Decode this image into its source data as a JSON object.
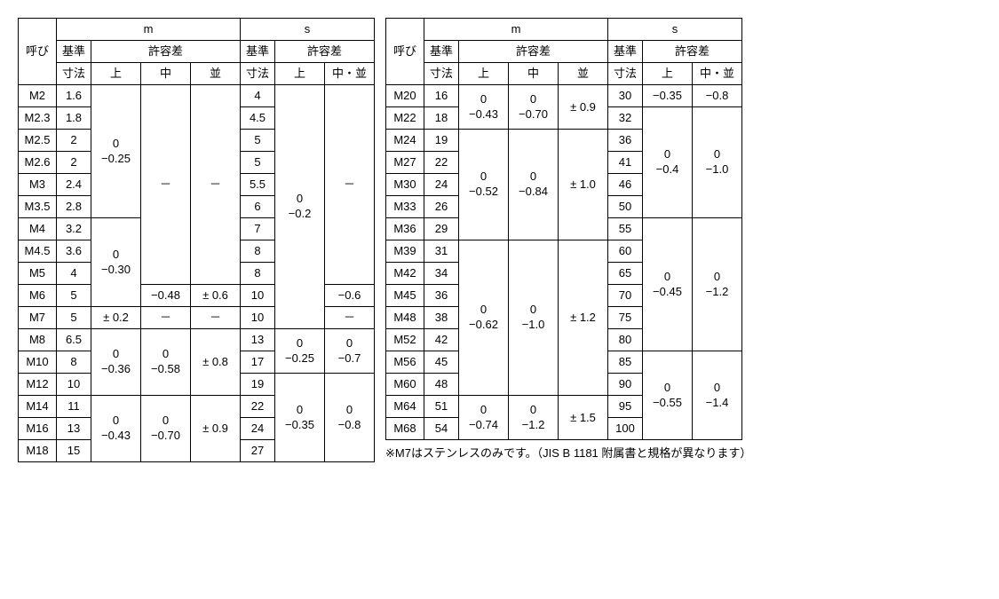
{
  "labels": {
    "yobi": "呼び",
    "m": "m",
    "s": "s",
    "kijun": "基準",
    "sunpo": "寸法",
    "kyoyosa": "許容差",
    "ue": "上",
    "naka": "中",
    "nami": "並",
    "naka_nami": "中・並",
    "dash": "－"
  },
  "note": "※M7はステンレスのみです。（JIS B 1181 附属書と規格が異なります）",
  "t1": {
    "rows": [
      {
        "y": "M2",
        "mk": "1.6",
        "sk": "4"
      },
      {
        "y": "M2.3",
        "mk": "1.8",
        "sk": "4.5"
      },
      {
        "y": "M2.5",
        "mk": "2",
        "sk": "5"
      },
      {
        "y": "M2.6",
        "mk": "2",
        "sk": "5"
      },
      {
        "y": "M3",
        "mk": "2.4",
        "sk": "5.5"
      },
      {
        "y": "M3.5",
        "mk": "2.8",
        "sk": "6"
      },
      {
        "y": "M4",
        "mk": "3.2",
        "sk": "7"
      },
      {
        "y": "M4.5",
        "mk": "3.6",
        "sk": "8"
      },
      {
        "y": "M5",
        "mk": "4",
        "sk": "8"
      },
      {
        "y": "M6",
        "mk": "5",
        "sk": "10"
      },
      {
        "y": "M7",
        "mk": "5",
        "sk": "10"
      },
      {
        "y": "M8",
        "mk": "6.5",
        "sk": "13"
      },
      {
        "y": "M10",
        "mk": "8",
        "sk": "17"
      },
      {
        "y": "M12",
        "mk": "10",
        "sk": "19"
      },
      {
        "y": "M14",
        "mk": "11",
        "sk": "22"
      },
      {
        "y": "M16",
        "mk": "13",
        "sk": "24"
      },
      {
        "y": "M18",
        "mk": "15",
        "sk": "27"
      }
    ],
    "m_ue_1": {
      "a": "0",
      "b": "−0.25"
    },
    "m_ue_2": {
      "a": "0",
      "b": "−0.30"
    },
    "m_ue_3": "± 0.2",
    "m_ue_4": {
      "a": "0",
      "b": "−0.36"
    },
    "m_ue_5": {
      "a": "0",
      "b": "−0.43"
    },
    "m_naka_2": "−0.48",
    "m_naka_4": {
      "a": "0",
      "b": "−0.58"
    },
    "m_naka_5": {
      "a": "0",
      "b": "−0.70"
    },
    "m_nami_2": "± 0.6",
    "m_nami_4": "± 0.8",
    "m_nami_5": "± 0.9",
    "s_ue_1": {
      "a": "0",
      "b": "−0.2"
    },
    "s_ue_2": {
      "a": "0",
      "b": "−0.25"
    },
    "s_ue_3": {
      "a": "0",
      "b": "−0.35"
    },
    "s_nn_2": "−0.6",
    "s_nn_4": {
      "a": "0",
      "b": "−0.7"
    },
    "s_nn_5": {
      "a": "0",
      "b": "−0.8"
    }
  },
  "t2": {
    "rows": [
      {
        "y": "M20",
        "mk": "16",
        "sk": "30"
      },
      {
        "y": "M22",
        "mk": "18",
        "sk": "32"
      },
      {
        "y": "M24",
        "mk": "19",
        "sk": "36"
      },
      {
        "y": "M27",
        "mk": "22",
        "sk": "41"
      },
      {
        "y": "M30",
        "mk": "24",
        "sk": "46"
      },
      {
        "y": "M33",
        "mk": "26",
        "sk": "50"
      },
      {
        "y": "M36",
        "mk": "29",
        "sk": "55"
      },
      {
        "y": "M39",
        "mk": "31",
        "sk": "60"
      },
      {
        "y": "M42",
        "mk": "34",
        "sk": "65"
      },
      {
        "y": "M45",
        "mk": "36",
        "sk": "70"
      },
      {
        "y": "M48",
        "mk": "38",
        "sk": "75"
      },
      {
        "y": "M52",
        "mk": "42",
        "sk": "80"
      },
      {
        "y": "M56",
        "mk": "45",
        "sk": "85"
      },
      {
        "y": "M60",
        "mk": "48",
        "sk": "90"
      },
      {
        "y": "M64",
        "mk": "51",
        "sk": "95"
      },
      {
        "y": "M68",
        "mk": "54",
        "sk": "100"
      }
    ],
    "m_ue_1": {
      "a": "0",
      "b": "−0.43"
    },
    "m_ue_2": {
      "a": "0",
      "b": "−0.52"
    },
    "m_ue_3": {
      "a": "0",
      "b": "−0.62"
    },
    "m_ue_4": {
      "a": "0",
      "b": "−0.74"
    },
    "m_naka_1": {
      "a": "0",
      "b": "−0.70"
    },
    "m_naka_2": {
      "a": "0",
      "b": "−0.84"
    },
    "m_naka_3": {
      "a": "0",
      "b": "−1.0"
    },
    "m_naka_4": {
      "a": "0",
      "b": "−1.2"
    },
    "m_nami_1": "± 0.9",
    "m_nami_2": "± 1.0",
    "m_nami_3": "± 1.2",
    "m_nami_4": "± 1.5",
    "s_ue_0": "−0.35",
    "s_ue_1": {
      "a": "0",
      "b": "−0.4"
    },
    "s_ue_2": {
      "a": "0",
      "b": "−0.45"
    },
    "s_ue_3": {
      "a": "0",
      "b": "−0.55"
    },
    "s_nn_0": "−0.8",
    "s_nn_1": {
      "a": "0",
      "b": "−1.0"
    },
    "s_nn_2": {
      "a": "0",
      "b": "−1.2"
    },
    "s_nn_3": {
      "a": "0",
      "b": "−1.4"
    }
  }
}
